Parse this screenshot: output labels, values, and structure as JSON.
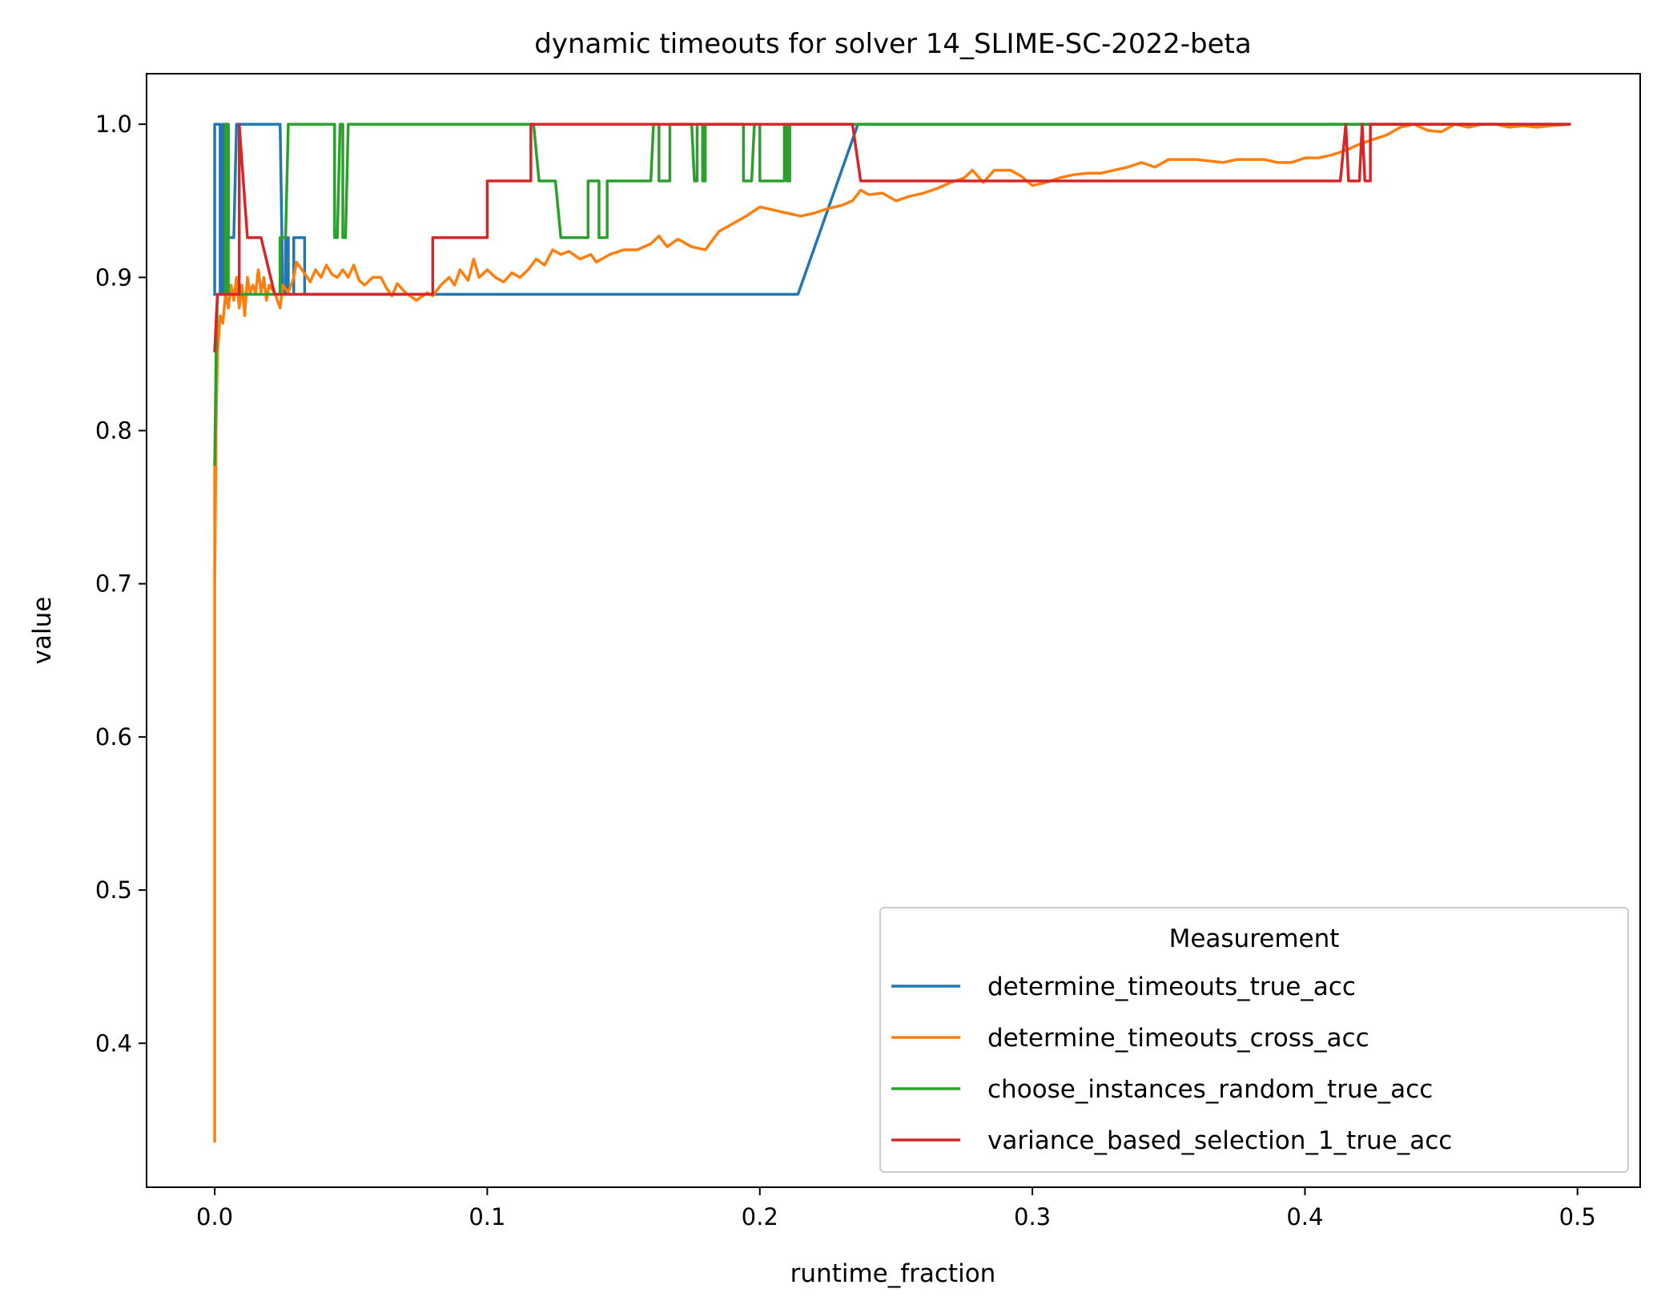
{
  "chart_data": {
    "type": "line",
    "title": "dynamic timeouts for solver 14_SLIME-SC-2022-beta",
    "xlabel": "runtime_fraction",
    "ylabel": "value",
    "xlim": [
      -0.025,
      0.523
    ],
    "ylim": [
      0.306,
      1.033
    ],
    "xticks": [
      0.0,
      0.1,
      0.2,
      0.3,
      0.4,
      0.5
    ],
    "xtick_labels": [
      "0.0",
      "0.1",
      "0.2",
      "0.3",
      "0.4",
      "0.5"
    ],
    "yticks": [
      0.4,
      0.5,
      0.6,
      0.7,
      0.8,
      0.9,
      1.0
    ],
    "ytick_labels": [
      "0.4",
      "0.5",
      "0.6",
      "0.7",
      "0.8",
      "0.9",
      "1.0"
    ],
    "grid": false,
    "legend": {
      "title": "Measurement",
      "position": "lower right"
    },
    "series": [
      {
        "name": "determine_timeouts_true_acc",
        "color": "#1f77b4",
        "points": [
          [
            0.0,
            0.889
          ],
          [
            0.0,
            1.0
          ],
          [
            0.002,
            1.0
          ],
          [
            0.002,
            0.889
          ],
          [
            0.003,
            0.889
          ],
          [
            0.003,
            1.0
          ],
          [
            0.005,
            1.0
          ],
          [
            0.005,
            0.926
          ],
          [
            0.007,
            0.926
          ],
          [
            0.008,
            1.0
          ],
          [
            0.024,
            1.0
          ],
          [
            0.025,
            0.889
          ],
          [
            0.026,
            0.889
          ],
          [
            0.026,
            0.926
          ],
          [
            0.027,
            0.926
          ],
          [
            0.027,
            0.889
          ],
          [
            0.029,
            0.889
          ],
          [
            0.029,
            0.926
          ],
          [
            0.033,
            0.926
          ],
          [
            0.033,
            0.889
          ],
          [
            0.214,
            0.889
          ],
          [
            0.236,
            1.0
          ],
          [
            0.497,
            1.0
          ]
        ]
      },
      {
        "name": "determine_timeouts_cross_acc",
        "color": "#ff7f0e",
        "points": [
          [
            0.0,
            0.78
          ],
          [
            0.0,
            0.336
          ],
          [
            0.0,
            0.7
          ],
          [
            0.0005,
            0.8
          ],
          [
            0.001,
            0.85
          ],
          [
            0.002,
            0.875
          ],
          [
            0.003,
            0.87
          ],
          [
            0.004,
            0.89
          ],
          [
            0.005,
            0.88
          ],
          [
            0.006,
            0.895
          ],
          [
            0.007,
            0.885
          ],
          [
            0.008,
            0.9
          ],
          [
            0.009,
            0.88
          ],
          [
            0.01,
            0.895
          ],
          [
            0.011,
            0.875
          ],
          [
            0.012,
            0.9
          ],
          [
            0.013,
            0.89
          ],
          [
            0.014,
            0.895
          ],
          [
            0.015,
            0.89
          ],
          [
            0.016,
            0.905
          ],
          [
            0.017,
            0.89
          ],
          [
            0.018,
            0.9
          ],
          [
            0.019,
            0.885
          ],
          [
            0.02,
            0.895
          ],
          [
            0.022,
            0.89
          ],
          [
            0.023,
            0.885
          ],
          [
            0.024,
            0.88
          ],
          [
            0.025,
            0.895
          ],
          [
            0.027,
            0.89
          ],
          [
            0.029,
            0.9
          ],
          [
            0.03,
            0.91
          ],
          [
            0.032,
            0.905
          ],
          [
            0.034,
            0.9
          ],
          [
            0.035,
            0.897
          ],
          [
            0.037,
            0.905
          ],
          [
            0.039,
            0.9
          ],
          [
            0.041,
            0.908
          ],
          [
            0.043,
            0.902
          ],
          [
            0.045,
            0.9
          ],
          [
            0.047,
            0.905
          ],
          [
            0.049,
            0.9
          ],
          [
            0.051,
            0.908
          ],
          [
            0.053,
            0.898
          ],
          [
            0.055,
            0.895
          ],
          [
            0.058,
            0.9
          ],
          [
            0.061,
            0.9
          ],
          [
            0.063,
            0.893
          ],
          [
            0.065,
            0.888
          ],
          [
            0.067,
            0.896
          ],
          [
            0.07,
            0.89
          ],
          [
            0.074,
            0.885
          ],
          [
            0.078,
            0.89
          ],
          [
            0.08,
            0.888
          ],
          [
            0.083,
            0.895
          ],
          [
            0.086,
            0.9
          ],
          [
            0.088,
            0.895
          ],
          [
            0.09,
            0.905
          ],
          [
            0.093,
            0.898
          ],
          [
            0.095,
            0.912
          ],
          [
            0.097,
            0.9
          ],
          [
            0.1,
            0.905
          ],
          [
            0.103,
            0.9
          ],
          [
            0.106,
            0.897
          ],
          [
            0.109,
            0.903
          ],
          [
            0.112,
            0.9
          ],
          [
            0.115,
            0.905
          ],
          [
            0.118,
            0.912
          ],
          [
            0.121,
            0.908
          ],
          [
            0.124,
            0.918
          ],
          [
            0.127,
            0.915
          ],
          [
            0.13,
            0.917
          ],
          [
            0.134,
            0.912
          ],
          [
            0.138,
            0.915
          ],
          [
            0.14,
            0.91
          ],
          [
            0.145,
            0.915
          ],
          [
            0.15,
            0.918
          ],
          [
            0.155,
            0.918
          ],
          [
            0.16,
            0.922
          ],
          [
            0.163,
            0.927
          ],
          [
            0.166,
            0.92
          ],
          [
            0.17,
            0.925
          ],
          [
            0.175,
            0.92
          ],
          [
            0.18,
            0.918
          ],
          [
            0.185,
            0.93
          ],
          [
            0.19,
            0.935
          ],
          [
            0.195,
            0.94
          ],
          [
            0.2,
            0.946
          ],
          [
            0.205,
            0.944
          ],
          [
            0.21,
            0.942
          ],
          [
            0.215,
            0.94
          ],
          [
            0.22,
            0.942
          ],
          [
            0.225,
            0.945
          ],
          [
            0.23,
            0.947
          ],
          [
            0.234,
            0.95
          ],
          [
            0.237,
            0.957
          ],
          [
            0.24,
            0.954
          ],
          [
            0.245,
            0.955
          ],
          [
            0.25,
            0.95
          ],
          [
            0.255,
            0.953
          ],
          [
            0.26,
            0.955
          ],
          [
            0.265,
            0.958
          ],
          [
            0.27,
            0.962
          ],
          [
            0.275,
            0.965
          ],
          [
            0.278,
            0.97
          ],
          [
            0.282,
            0.962
          ],
          [
            0.286,
            0.97
          ],
          [
            0.292,
            0.97
          ],
          [
            0.296,
            0.966
          ],
          [
            0.3,
            0.96
          ],
          [
            0.305,
            0.962
          ],
          [
            0.31,
            0.965
          ],
          [
            0.315,
            0.967
          ],
          [
            0.32,
            0.968
          ],
          [
            0.325,
            0.968
          ],
          [
            0.33,
            0.97
          ],
          [
            0.335,
            0.972
          ],
          [
            0.34,
            0.975
          ],
          [
            0.345,
            0.972
          ],
          [
            0.35,
            0.977
          ],
          [
            0.36,
            0.977
          ],
          [
            0.37,
            0.975
          ],
          [
            0.375,
            0.977
          ],
          [
            0.38,
            0.977
          ],
          [
            0.385,
            0.977
          ],
          [
            0.39,
            0.975
          ],
          [
            0.395,
            0.975
          ],
          [
            0.4,
            0.978
          ],
          [
            0.405,
            0.978
          ],
          [
            0.41,
            0.98
          ],
          [
            0.415,
            0.983
          ],
          [
            0.42,
            0.987
          ],
          [
            0.425,
            0.99
          ],
          [
            0.43,
            0.993
          ],
          [
            0.435,
            0.998
          ],
          [
            0.44,
            1.0
          ],
          [
            0.445,
            0.996
          ],
          [
            0.45,
            0.995
          ],
          [
            0.455,
            1.0
          ],
          [
            0.46,
            0.998
          ],
          [
            0.465,
            1.0
          ],
          [
            0.47,
            1.0
          ],
          [
            0.475,
            0.998
          ],
          [
            0.48,
            0.999
          ],
          [
            0.485,
            0.998
          ],
          [
            0.49,
            0.999
          ],
          [
            0.497,
            1.0
          ]
        ]
      },
      {
        "name": "choose_instances_random_true_acc",
        "color": "#2ca02c",
        "points": [
          [
            0.0,
            0.778
          ],
          [
            0.0005,
            0.85
          ],
          [
            0.001,
            0.889
          ],
          [
            0.004,
            0.889
          ],
          [
            0.004,
            1.0
          ],
          [
            0.005,
            1.0
          ],
          [
            0.005,
            0.889
          ],
          [
            0.024,
            0.889
          ],
          [
            0.024,
            0.926
          ],
          [
            0.025,
            0.926
          ],
          [
            0.026,
            0.926
          ],
          [
            0.027,
            1.0
          ],
          [
            0.044,
            1.0
          ],
          [
            0.044,
            0.926
          ],
          [
            0.045,
            0.926
          ],
          [
            0.046,
            1.0
          ],
          [
            0.047,
            1.0
          ],
          [
            0.047,
            0.926
          ],
          [
            0.048,
            0.926
          ],
          [
            0.049,
            1.0
          ],
          [
            0.117,
            1.0
          ],
          [
            0.119,
            0.963
          ],
          [
            0.125,
            0.963
          ],
          [
            0.127,
            0.926
          ],
          [
            0.137,
            0.926
          ],
          [
            0.137,
            0.963
          ],
          [
            0.141,
            0.963
          ],
          [
            0.141,
            0.926
          ],
          [
            0.144,
            0.926
          ],
          [
            0.144,
            0.963
          ],
          [
            0.16,
            0.963
          ],
          [
            0.161,
            1.0
          ],
          [
            0.163,
            1.0
          ],
          [
            0.163,
            0.963
          ],
          [
            0.167,
            0.963
          ],
          [
            0.167,
            1.0
          ],
          [
            0.175,
            1.0
          ],
          [
            0.176,
            0.963
          ],
          [
            0.177,
            0.963
          ],
          [
            0.177,
            1.0
          ],
          [
            0.179,
            1.0
          ],
          [
            0.179,
            0.963
          ],
          [
            0.18,
            0.963
          ],
          [
            0.18,
            1.0
          ],
          [
            0.194,
            1.0
          ],
          [
            0.194,
            0.963
          ],
          [
            0.197,
            0.963
          ],
          [
            0.198,
            1.0
          ],
          [
            0.2,
            1.0
          ],
          [
            0.2,
            0.963
          ],
          [
            0.209,
            0.963
          ],
          [
            0.209,
            1.0
          ],
          [
            0.21,
            1.0
          ],
          [
            0.21,
            0.963
          ],
          [
            0.211,
            0.963
          ],
          [
            0.211,
            1.0
          ],
          [
            0.497,
            1.0
          ]
        ]
      },
      {
        "name": "variance_based_selection_1_true_acc",
        "color": "#d62728",
        "points": [
          [
            0.0,
            0.852
          ],
          [
            0.001,
            0.889
          ],
          [
            0.009,
            0.889
          ],
          [
            0.009,
            1.0
          ],
          [
            0.012,
            0.926
          ],
          [
            0.017,
            0.926
          ],
          [
            0.022,
            0.889
          ],
          [
            0.08,
            0.889
          ],
          [
            0.08,
            0.926
          ],
          [
            0.1,
            0.926
          ],
          [
            0.1,
            0.963
          ],
          [
            0.116,
            0.963
          ],
          [
            0.116,
            1.0
          ],
          [
            0.234,
            1.0
          ],
          [
            0.237,
            0.963
          ],
          [
            0.413,
            0.963
          ],
          [
            0.415,
            1.0
          ],
          [
            0.416,
            0.963
          ],
          [
            0.42,
            0.963
          ],
          [
            0.421,
            1.0
          ],
          [
            0.422,
            0.963
          ],
          [
            0.424,
            0.963
          ],
          [
            0.424,
            1.0
          ],
          [
            0.497,
            1.0
          ]
        ]
      }
    ]
  }
}
